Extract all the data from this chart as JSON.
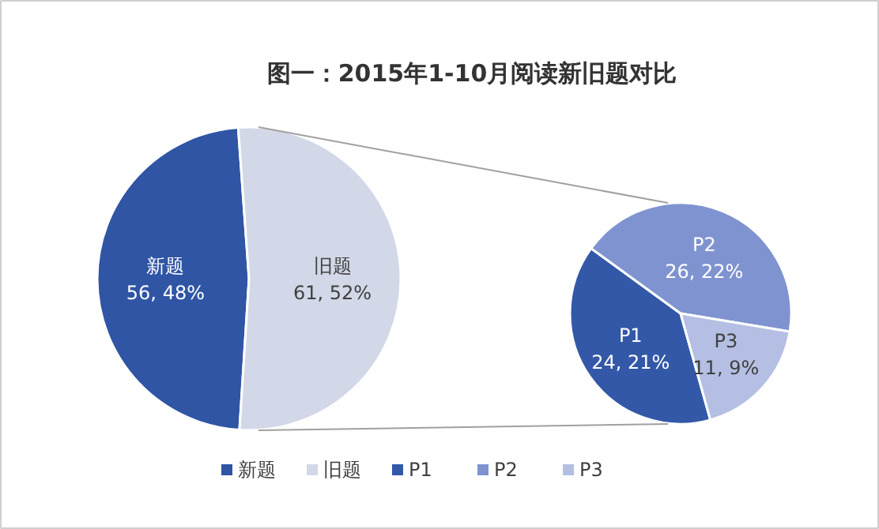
{
  "chart_data": [
    {
      "type": "pie",
      "title": "图一：2015年1-10月阅读新旧题对比",
      "categories": [
        "新题",
        "旧题"
      ],
      "values": [
        56,
        61
      ],
      "value_labels": [
        "56, 48%",
        "61, 52%"
      ],
      "colors": [
        "#2f55a4",
        "#d3d8e8"
      ],
      "legend": "bottom"
    },
    {
      "type": "pie",
      "categories": [
        "P1",
        "P2",
        "P3"
      ],
      "values": [
        24,
        26,
        11
      ],
      "value_labels": [
        "24, 21%",
        "26, 22%",
        "11, 9%"
      ],
      "colors": [
        "#3358a8",
        "#7f93d0",
        "#b4bfe3"
      ],
      "legend": "bottom"
    }
  ]
}
